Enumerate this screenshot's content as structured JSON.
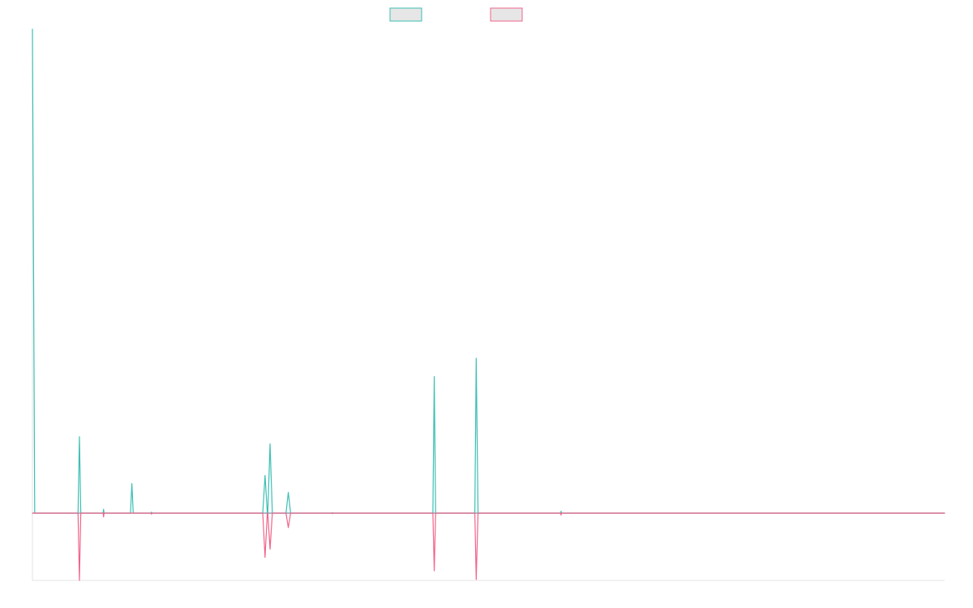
{
  "chart_data": {
    "type": "line",
    "title": "",
    "xlabel": "",
    "ylabel": "",
    "legend": {
      "placement": "top-center"
    },
    "grid": false,
    "x_range": [
      0,
      200
    ],
    "y_range": [
      -0.14,
      1.0
    ],
    "series": [
      {
        "color": "#3dbfb3",
        "direction": "up",
        "points": [
          [
            0.0,
            1.0
          ],
          [
            0.5,
            0.0
          ],
          [
            10.0,
            0.0
          ],
          [
            10.3,
            0.158
          ],
          [
            10.6,
            0.0
          ],
          [
            15.5,
            0.0
          ],
          [
            15.6,
            0.008
          ],
          [
            15.7,
            0.0
          ],
          [
            21.5,
            0.0
          ],
          [
            21.8,
            0.061
          ],
          [
            22.1,
            0.0
          ],
          [
            26.0,
            0.0
          ],
          [
            26.1,
            0.002
          ],
          [
            26.2,
            0.0
          ],
          [
            50.5,
            0.0
          ],
          [
            51.0,
            0.078
          ],
          [
            51.5,
            0.0
          ],
          [
            51.6,
            0.0
          ],
          [
            52.1,
            0.143
          ],
          [
            52.6,
            0.0
          ],
          [
            55.6,
            0.0
          ],
          [
            56.1,
            0.043
          ],
          [
            56.6,
            0.0
          ],
          [
            65.7,
            0.0
          ],
          [
            65.8,
            0.001
          ],
          [
            65.9,
            0.0
          ],
          [
            87.8,
            0.0
          ],
          [
            88.1,
            0.282
          ],
          [
            88.4,
            0.0
          ],
          [
            97.0,
            0.0
          ],
          [
            97.3,
            0.32
          ],
          [
            97.7,
            0.0
          ],
          [
            115.8,
            0.0
          ],
          [
            115.9,
            0.004
          ],
          [
            116.0,
            0.0
          ],
          [
            200.0,
            0.0
          ]
        ]
      },
      {
        "color": "#f0648a",
        "direction": "down",
        "points": [
          [
            0.0,
            0.0
          ],
          [
            10.0,
            0.0
          ],
          [
            10.3,
            0.14
          ],
          [
            10.6,
            0.0
          ],
          [
            15.5,
            0.0
          ],
          [
            15.6,
            0.008
          ],
          [
            15.7,
            0.0
          ],
          [
            26.0,
            0.0
          ],
          [
            26.1,
            0.002
          ],
          [
            26.2,
            0.0
          ],
          [
            50.5,
            0.0
          ],
          [
            51.0,
            0.092
          ],
          [
            51.5,
            0.0
          ],
          [
            51.6,
            0.0
          ],
          [
            52.1,
            0.075
          ],
          [
            52.6,
            0.0
          ],
          [
            55.6,
            0.0
          ],
          [
            56.1,
            0.03
          ],
          [
            56.6,
            0.0
          ],
          [
            65.7,
            0.0
          ],
          [
            65.8,
            0.001
          ],
          [
            65.9,
            0.0
          ],
          [
            87.8,
            0.0
          ],
          [
            88.1,
            0.12
          ],
          [
            88.4,
            0.0
          ],
          [
            97.0,
            0.0
          ],
          [
            97.3,
            0.138
          ],
          [
            97.7,
            0.0
          ],
          [
            115.8,
            0.0
          ],
          [
            115.9,
            0.004
          ],
          [
            116.0,
            0.0
          ],
          [
            200.0,
            0.0
          ]
        ]
      }
    ]
  },
  "colors": {
    "series_1": "#3dbfb3",
    "series_2": "#f0648a",
    "baseline": "#7a8aa0",
    "axis": "#e3e3e3",
    "legend_fill": "#e6e6e6"
  }
}
